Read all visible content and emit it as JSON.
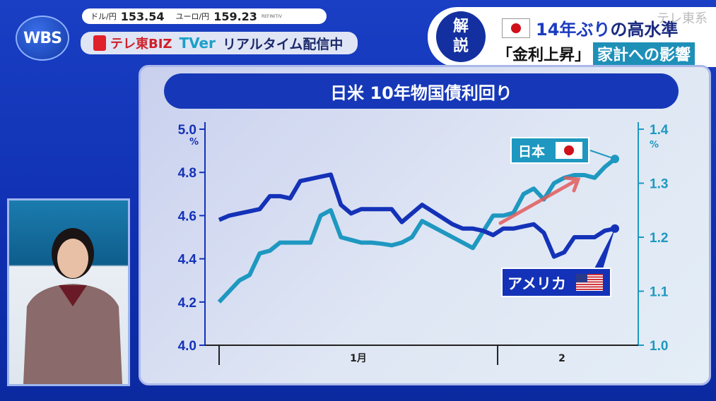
{
  "logo": {
    "text": "WBS"
  },
  "ticker": {
    "usd_label": "ドル/円",
    "usd_value": "153.54",
    "eur_label": "ユーロ/円",
    "eur_value": "159.23",
    "source": "REFINITIV"
  },
  "stream": {
    "biz": "テレ東BIZ",
    "tver": "TVer",
    "text": "リアルタイム配信中"
  },
  "headline": {
    "badge_top": "解",
    "badge_bottom": "説",
    "line1_blue": "14年ぶり",
    "line1_rest": "の高水準",
    "line2": "「金利上昇」",
    "line2_box": "家計への影響",
    "watermark": "テレ東系"
  },
  "colors": {
    "us": "#1432b8",
    "japan": "#1e98c0",
    "arrow": "#e05a5a",
    "background": "#1a3fc4"
  },
  "chart_data": {
    "type": "line",
    "title": "日米 10年物国債利回り",
    "left_axis": {
      "unit": "%",
      "ylim": [
        4.0,
        5.0
      ],
      "ticks": [
        "4.0",
        "4.2",
        "4.4",
        "4.6",
        "4.8",
        "5.0"
      ],
      "series": "アメリカ"
    },
    "right_axis": {
      "unit": "%",
      "ylim": [
        1.0,
        1.4
      ],
      "ticks": [
        "1.0",
        "1.1",
        "1.2",
        "1.3",
        "1.4"
      ],
      "series": "日本"
    },
    "x_labels": [
      "1月",
      "2"
    ],
    "month_boundary_index": 28,
    "series": [
      {
        "name": "アメリカ",
        "axis": "left",
        "values": [
          4.58,
          4.6,
          4.61,
          4.62,
          4.63,
          4.69,
          4.69,
          4.68,
          4.76,
          4.77,
          4.78,
          4.79,
          4.65,
          4.61,
          4.63,
          4.63,
          4.63,
          4.63,
          4.57,
          4.61,
          4.65,
          4.62,
          4.59,
          4.56,
          4.54,
          4.54,
          4.53,
          4.51,
          4.54,
          4.54,
          4.55,
          4.56,
          4.52,
          4.41,
          4.43,
          4.5,
          4.5,
          4.5,
          4.53,
          4.54
        ]
      },
      {
        "name": "日本",
        "axis": "right",
        "values": [
          1.08,
          1.1,
          1.12,
          1.13,
          1.17,
          1.175,
          1.19,
          1.19,
          1.19,
          1.19,
          1.24,
          1.25,
          1.2,
          1.195,
          1.19,
          1.19,
          1.188,
          1.185,
          1.19,
          1.2,
          1.23,
          1.22,
          1.21,
          1.2,
          1.19,
          1.18,
          1.21,
          1.24,
          1.24,
          1.245,
          1.28,
          1.29,
          1.27,
          1.3,
          1.31,
          1.315,
          1.315,
          1.31,
          1.33,
          1.345
        ]
      }
    ]
  }
}
